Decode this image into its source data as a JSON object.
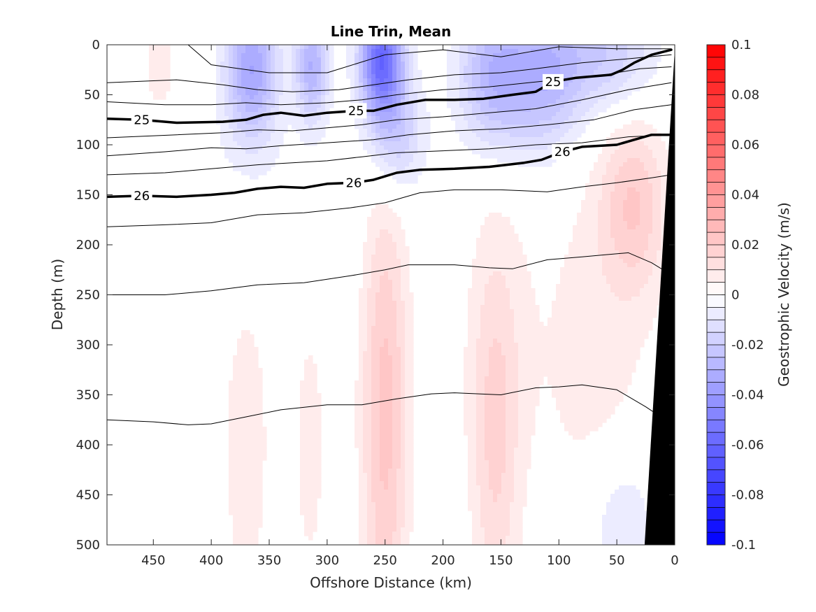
{
  "chart_data": {
    "type": "heatmap",
    "title": "Line Trin, Mean",
    "xlabel": "Offshore Distance (km)",
    "ylabel": "Depth (m)",
    "colorbar_label": "Geostrophic Velocity (m/s)",
    "x_reversed": true,
    "y_reversed": true,
    "xlim": [
      0,
      490
    ],
    "ylim": [
      0,
      500
    ],
    "x_ticks": [
      450,
      400,
      350,
      300,
      250,
      200,
      150,
      100,
      50,
      0
    ],
    "y_ticks": [
      0,
      50,
      100,
      150,
      200,
      250,
      300,
      350,
      400,
      450,
      500
    ],
    "colorbar": {
      "range": [
        -0.1,
        0.1
      ],
      "ticks": [
        0.1,
        0.08,
        0.06,
        0.04,
        0.02,
        0,
        -0.02,
        -0.04,
        -0.06,
        -0.08,
        -0.1
      ],
      "tick_labels": [
        "0.1",
        "0.08",
        "0.06",
        "0.04",
        "0.02",
        "0",
        "-0.02",
        "-0.04",
        "-0.06",
        "-0.08",
        "-0.1"
      ],
      "levels": 40,
      "negative_color": "#0000ff",
      "positive_color": "#ff0000",
      "zero_color": "#ffffff"
    },
    "velocity_features": [
      {
        "x": 445,
        "depth": 25,
        "sx": 9,
        "sd": 30,
        "value": 0.01
      },
      {
        "x": 365,
        "depth": 25,
        "sx": 16,
        "sd": 50,
        "value": -0.035
      },
      {
        "x": 313,
        "depth": 20,
        "sx": 10,
        "sd": 40,
        "value": -0.03
      },
      {
        "x": 253,
        "depth": 15,
        "sx": 13,
        "sd": 40,
        "value": -0.06
      },
      {
        "x": 240,
        "depth": 90,
        "sx": 16,
        "sd": 40,
        "value": -0.02
      },
      {
        "x": 155,
        "depth": 30,
        "sx": 22,
        "sd": 50,
        "value": -0.03
      },
      {
        "x": 110,
        "depth": 30,
        "sx": 22,
        "sd": 55,
        "value": -0.025
      },
      {
        "x": 60,
        "depth": 10,
        "sx": 30,
        "sd": 40,
        "value": -0.02
      },
      {
        "x": 430,
        "depth": 200,
        "sx": 120,
        "sd": 80,
        "value": -0.005
      },
      {
        "x": 250,
        "depth": 430,
        "sx": 14,
        "sd": 150,
        "value": 0.017
      },
      {
        "x": 250,
        "depth": 260,
        "sx": 16,
        "sd": 120,
        "value": 0.01
      },
      {
        "x": 370,
        "depth": 380,
        "sx": 14,
        "sd": 130,
        "value": 0.01
      },
      {
        "x": 315,
        "depth": 390,
        "sx": 10,
        "sd": 110,
        "value": 0.008
      },
      {
        "x": 155,
        "depth": 420,
        "sx": 14,
        "sd": 130,
        "value": 0.012
      },
      {
        "x": 155,
        "depth": 300,
        "sx": 22,
        "sd": 120,
        "value": 0.007
      },
      {
        "x": 35,
        "depth": 160,
        "sx": 20,
        "sd": 60,
        "value": 0.018
      },
      {
        "x": 70,
        "depth": 300,
        "sx": 40,
        "sd": 150,
        "value": 0.007
      },
      {
        "x": 45,
        "depth": 480,
        "sx": 20,
        "sd": 50,
        "value": -0.012
      },
      {
        "x": 190,
        "depth": 490,
        "sx": 5,
        "sd": 40,
        "value": -0.005
      }
    ],
    "isopycnals": [
      {
        "label": "",
        "bold": false,
        "points": [
          [
            420,
            0
          ],
          [
            400,
            20
          ],
          [
            350,
            28
          ],
          [
            300,
            28
          ],
          [
            250,
            10
          ],
          [
            200,
            5
          ],
          [
            150,
            12
          ],
          [
            100,
            2
          ],
          [
            50,
            4
          ],
          [
            3,
            4
          ]
        ]
      },
      {
        "label": "",
        "bold": false,
        "points": [
          [
            490,
            38
          ],
          [
            430,
            35
          ],
          [
            390,
            40
          ],
          [
            360,
            45
          ],
          [
            330,
            47
          ],
          [
            290,
            45
          ],
          [
            260,
            40
          ],
          [
            230,
            35
          ],
          [
            190,
            30
          ],
          [
            150,
            28
          ],
          [
            120,
            24
          ],
          [
            80,
            18
          ],
          [
            40,
            14
          ],
          [
            3,
            10
          ]
        ]
      },
      {
        "label": "",
        "bold": false,
        "points": [
          [
            490,
            57
          ],
          [
            440,
            60
          ],
          [
            400,
            60
          ],
          [
            370,
            58
          ],
          [
            340,
            60
          ],
          [
            300,
            58
          ],
          [
            270,
            55
          ],
          [
            240,
            50
          ],
          [
            200,
            45
          ],
          [
            160,
            42
          ],
          [
            110,
            36
          ],
          [
            60,
            30
          ],
          [
            30,
            24
          ],
          [
            3,
            22
          ]
        ]
      },
      {
        "label": "25",
        "bold": true,
        "label_positions": [
          [
            460,
            75
          ],
          [
            275,
            66
          ],
          [
            105,
            37
          ]
        ],
        "points": [
          [
            490,
            74
          ],
          [
            460,
            75
          ],
          [
            430,
            78
          ],
          [
            390,
            77
          ],
          [
            370,
            75
          ],
          [
            355,
            70
          ],
          [
            340,
            68
          ],
          [
            320,
            71
          ],
          [
            300,
            68
          ],
          [
            275,
            66
          ],
          [
            260,
            66
          ],
          [
            240,
            60
          ],
          [
            215,
            55
          ],
          [
            190,
            55
          ],
          [
            165,
            54
          ],
          [
            140,
            50
          ],
          [
            120,
            47
          ],
          [
            105,
            37
          ],
          [
            85,
            33
          ],
          [
            55,
            30
          ],
          [
            45,
            25
          ],
          [
            35,
            18
          ],
          [
            20,
            10
          ],
          [
            3,
            5
          ]
        ]
      },
      {
        "label": "",
        "bold": false,
        "points": [
          [
            490,
            93
          ],
          [
            430,
            90
          ],
          [
            390,
            88
          ],
          [
            360,
            85
          ],
          [
            330,
            86
          ],
          [
            300,
            83
          ],
          [
            270,
            80
          ],
          [
            240,
            75
          ],
          [
            200,
            72
          ],
          [
            160,
            68
          ],
          [
            120,
            64
          ],
          [
            80,
            55
          ],
          [
            40,
            45
          ],
          [
            3,
            38
          ]
        ]
      },
      {
        "label": "",
        "bold": false,
        "points": [
          [
            490,
            111
          ],
          [
            440,
            107
          ],
          [
            400,
            103
          ],
          [
            370,
            104
          ],
          [
            340,
            101
          ],
          [
            300,
            98
          ],
          [
            260,
            95
          ],
          [
            230,
            90
          ],
          [
            190,
            86
          ],
          [
            150,
            84
          ],
          [
            110,
            80
          ],
          [
            70,
            75
          ],
          [
            35,
            65
          ],
          [
            3,
            60
          ]
        ]
      },
      {
        "label": "",
        "bold": false,
        "points": [
          [
            490,
            130
          ],
          [
            440,
            128
          ],
          [
            400,
            124
          ],
          [
            360,
            120
          ],
          [
            330,
            118
          ],
          [
            300,
            116
          ],
          [
            270,
            112
          ],
          [
            240,
            108
          ],
          [
            200,
            106
          ],
          [
            160,
            104
          ],
          [
            120,
            100
          ],
          [
            80,
            98
          ],
          [
            40,
            92
          ],
          [
            3,
            90
          ]
        ]
      },
      {
        "label": "26",
        "bold": true,
        "label_positions": [
          [
            460,
            151
          ],
          [
            277,
            138
          ],
          [
            97,
            107
          ]
        ],
        "points": [
          [
            490,
            152
          ],
          [
            460,
            151
          ],
          [
            430,
            152
          ],
          [
            400,
            150
          ],
          [
            380,
            148
          ],
          [
            360,
            144
          ],
          [
            340,
            142
          ],
          [
            320,
            143
          ],
          [
            300,
            139
          ],
          [
            277,
            138
          ],
          [
            260,
            135
          ],
          [
            240,
            128
          ],
          [
            220,
            125
          ],
          [
            190,
            124
          ],
          [
            160,
            122
          ],
          [
            130,
            118
          ],
          [
            115,
            115
          ],
          [
            97,
            107
          ],
          [
            80,
            102
          ],
          [
            50,
            100
          ],
          [
            35,
            95
          ],
          [
            20,
            90
          ],
          [
            3,
            90
          ]
        ]
      },
      {
        "label": "",
        "bold": false,
        "points": [
          [
            490,
            182
          ],
          [
            440,
            180
          ],
          [
            400,
            178
          ],
          [
            360,
            170
          ],
          [
            320,
            168
          ],
          [
            280,
            163
          ],
          [
            250,
            158
          ],
          [
            220,
            148
          ],
          [
            190,
            145
          ],
          [
            150,
            145
          ],
          [
            110,
            147
          ],
          [
            80,
            142
          ],
          [
            50,
            138
          ],
          [
            20,
            133
          ],
          [
            3,
            130
          ]
        ]
      },
      {
        "label": "",
        "bold": false,
        "points": [
          [
            490,
            250
          ],
          [
            440,
            250
          ],
          [
            400,
            246
          ],
          [
            360,
            240
          ],
          [
            320,
            238
          ],
          [
            280,
            231
          ],
          [
            250,
            225
          ],
          [
            230,
            220
          ],
          [
            190,
            220
          ],
          [
            160,
            223
          ],
          [
            140,
            224
          ],
          [
            110,
            215
          ],
          [
            80,
            212
          ],
          [
            60,
            210
          ],
          [
            40,
            208
          ],
          [
            20,
            218
          ],
          [
            3,
            230
          ]
        ]
      },
      {
        "label": "",
        "bold": false,
        "points": [
          [
            490,
            375
          ],
          [
            450,
            377
          ],
          [
            420,
            380
          ],
          [
            400,
            379
          ],
          [
            370,
            372
          ],
          [
            340,
            365
          ],
          [
            300,
            360
          ],
          [
            270,
            360
          ],
          [
            240,
            354
          ],
          [
            210,
            349
          ],
          [
            190,
            348
          ],
          [
            150,
            350
          ],
          [
            120,
            343
          ],
          [
            100,
            342
          ],
          [
            80,
            340
          ],
          [
            50,
            345
          ],
          [
            25,
            362
          ],
          [
            8,
            375
          ]
        ]
      }
    ],
    "bathymetry": {
      "color": "#000000",
      "points": [
        [
          0,
          5
        ],
        [
          26,
          500
        ]
      ]
    }
  }
}
